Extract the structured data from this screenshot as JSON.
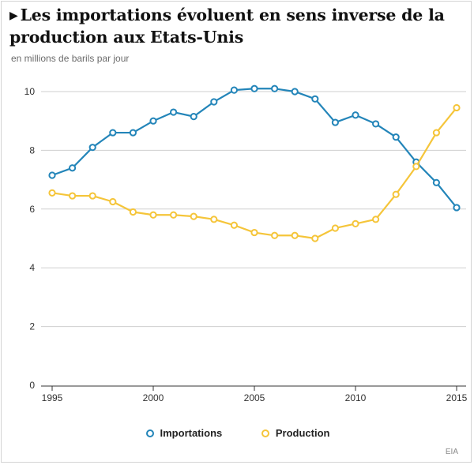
{
  "header": {
    "title": "Les importations évoluent en sens inverse de la production aux Etats-Unis",
    "subtitle": "en millions de barils par jour"
  },
  "source": "EIA",
  "colors": {
    "importations": "#2385b9",
    "production": "#f5c53a",
    "grid": "#cfcfcf",
    "axis": "#333333"
  },
  "chart_data": {
    "type": "line",
    "title": "Les importations évoluent en sens inverse de la production aux Etats-Unis",
    "ylabel": "en millions de barils par jour",
    "xlabel": "",
    "x": [
      1995,
      1996,
      1997,
      1998,
      1999,
      2000,
      2001,
      2002,
      2003,
      2004,
      2005,
      2006,
      2007,
      2008,
      2009,
      2010,
      2011,
      2012,
      2013,
      2014,
      2015
    ],
    "xticks": [
      1995,
      2000,
      2005,
      2010,
      2015
    ],
    "yticks": [
      0,
      2,
      4,
      6,
      8,
      10
    ],
    "xlim": [
      1995,
      2015
    ],
    "ylim": [
      0,
      10
    ],
    "grid": "horizontal",
    "legend_position": "bottom",
    "series": [
      {
        "name": "Importations",
        "color": "#2385b9",
        "values": [
          7.15,
          7.4,
          8.1,
          8.6,
          8.6,
          9.0,
          9.3,
          9.15,
          9.65,
          10.05,
          10.1,
          10.1,
          10.0,
          9.75,
          8.95,
          9.2,
          8.9,
          8.45,
          7.6,
          6.9,
          6.05
        ]
      },
      {
        "name": "Production",
        "color": "#f5c53a",
        "values": [
          6.55,
          6.45,
          6.45,
          6.25,
          5.9,
          5.8,
          5.8,
          5.75,
          5.65,
          5.45,
          5.2,
          5.1,
          5.1,
          5.0,
          5.35,
          5.5,
          5.65,
          6.5,
          7.45,
          8.6,
          9.45
        ]
      }
    ]
  }
}
